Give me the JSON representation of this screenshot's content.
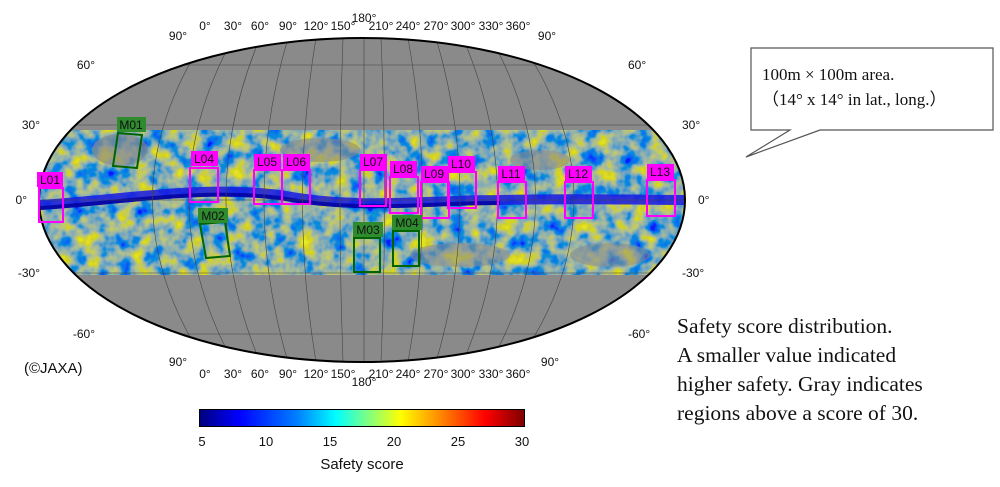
{
  "map": {
    "top_lon_labels": [
      "0°",
      "30°",
      "60°",
      "90°",
      "120°",
      "150°",
      "180°",
      "210°",
      "240°",
      "270°",
      "300°",
      "330°",
      "360°"
    ],
    "bottom_lon_labels": [
      "0°",
      "30°",
      "60°",
      "90°",
      "120°",
      "150°",
      "180°",
      "210°",
      "240°",
      "270°",
      "300°",
      "330°",
      "360°"
    ],
    "corner_labels": {
      "top_left": "90°",
      "top_right": "90°",
      "bottom_left": "90°",
      "bottom_right": "90°"
    },
    "lat_labels_left": [
      "60°",
      "30°",
      "0°",
      "-30°",
      "-60°"
    ],
    "lat_labels_right": [
      "60°",
      "30°",
      "0°",
      "-30°",
      "-60°"
    ],
    "landing_sites_magenta": [
      "L01",
      "L04",
      "L05",
      "L06",
      "L07",
      "L08",
      "L09",
      "L10",
      "L11",
      "L12",
      "L13"
    ],
    "landing_sites_green": [
      "M01",
      "M02",
      "M03",
      "M04"
    ],
    "colors": {
      "gray_region": "#8a8a8a",
      "magenta_box": "#ff00ff",
      "green_box": "#006400",
      "green_label": "#2e8b2e"
    }
  },
  "callout": {
    "line1": "100m × 100m area.",
    "line2": "（14° x 14° in lat., long.）"
  },
  "caption": {
    "line1": "Safety score distribution.",
    "line2": "A smaller value indicated",
    "line3": "higher safety. Gray indicates",
    "line4": "regions above a score of 30."
  },
  "credit": "(©JAXA)",
  "colorbar": {
    "ticks": [
      "5",
      "10",
      "15",
      "20",
      "25",
      "30"
    ],
    "title": "Safety score"
  }
}
